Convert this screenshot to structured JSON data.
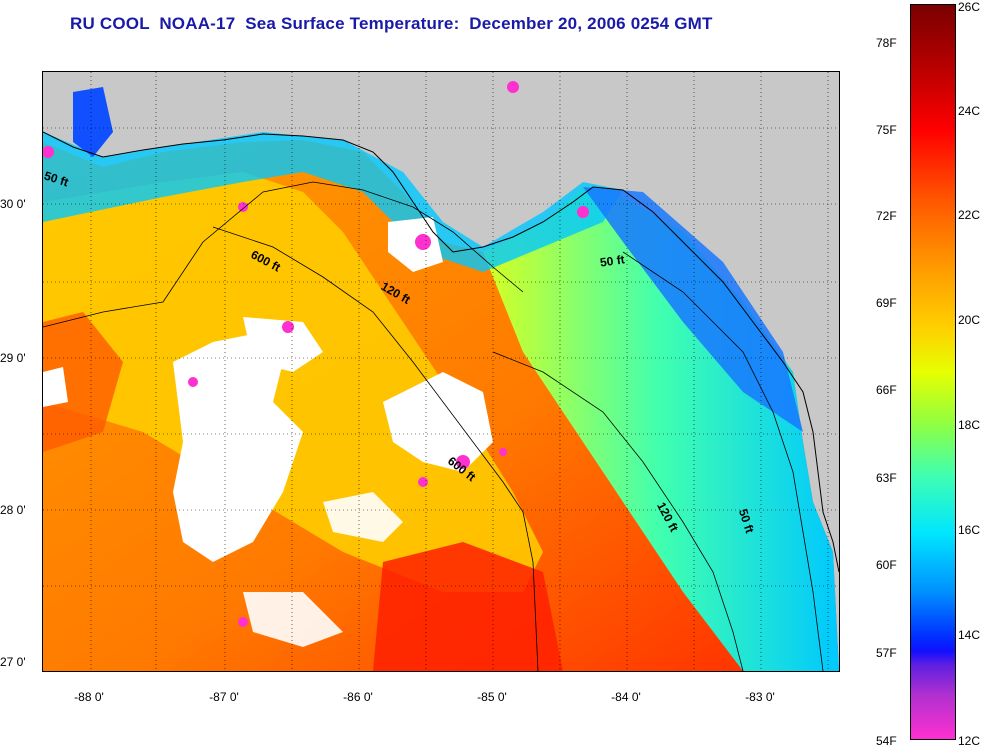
{
  "title": "RU COOL  NOAA-17  Sea Surface Temperature:  December 20, 2006 0254 GMT",
  "map": {
    "lat_labels": [
      "30 0'",
      "29 0'",
      "28 0'",
      "27 0'"
    ],
    "lon_labels": [
      "-88 0'",
      "-87 0'",
      "-86 0'",
      "-85 0'",
      "-84 0'",
      "-83 0'"
    ],
    "contour_labels": [
      "50 ft",
      "600 ft",
      "120 ft",
      "50 ft",
      "600 ft",
      "120 ft",
      "50 ft"
    ]
  },
  "colorbar": {
    "fahrenheit_labels": [
      "78F",
      "75F",
      "72F",
      "69F",
      "66F",
      "63F",
      "60F",
      "57F",
      "54F"
    ],
    "celsius_labels": [
      "26C",
      "24C",
      "22C",
      "20C",
      "18C",
      "16C",
      "14C",
      "12C"
    ]
  },
  "colors": {
    "title": "#1a1aa8",
    "land": "#c8c8c8",
    "cloud": "#ffffff"
  }
}
